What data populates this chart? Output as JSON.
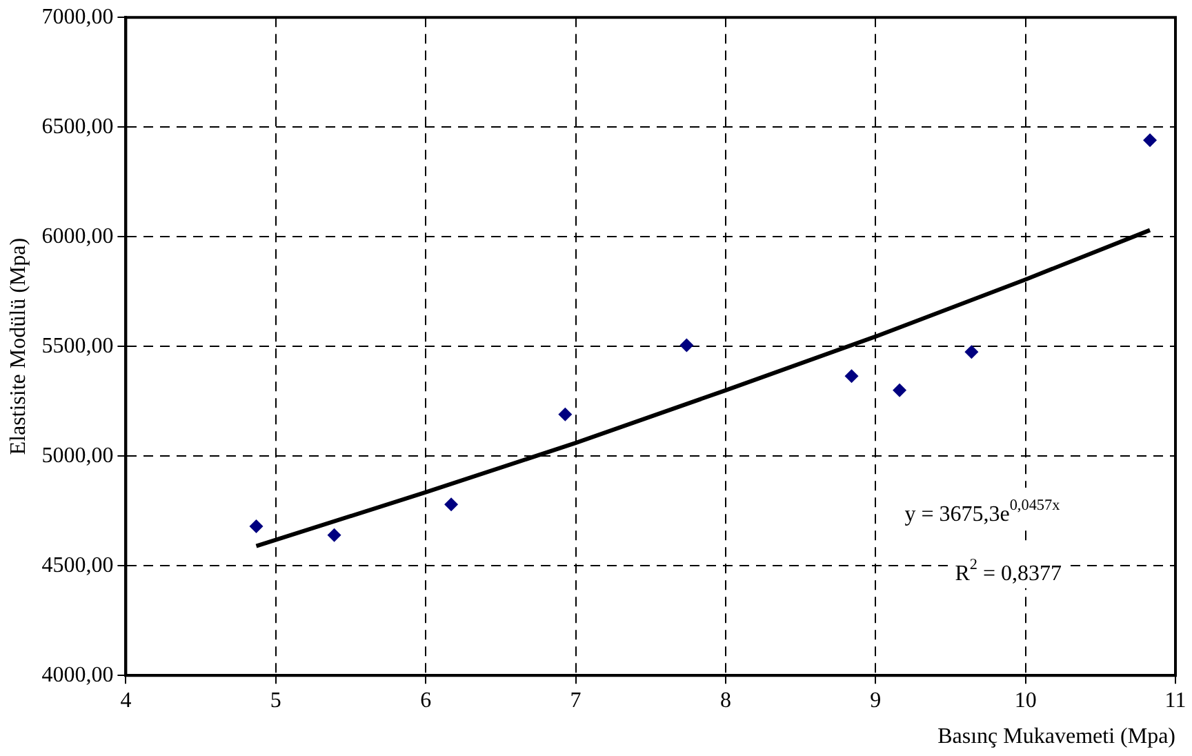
{
  "chart_data": {
    "type": "scatter",
    "xlabel": "Basınç Mukavemeti (Mpa)",
    "ylabel": "Elastisite Modülü (Mpa)",
    "annotations": [
      "y = 3675,3e$^{0,0457x}$",
      "R$^{2}$ = 0,8377"
    ],
    "series": [
      {
        "type": "scatter",
        "color": "#000080",
        "marker": "diamond",
        "x": [
          4.87,
          5.39,
          6.17,
          6.93,
          7.74,
          8.84,
          9.16,
          9.64,
          10.83
        ],
        "values": [
          4680,
          4640,
          4780,
          5190,
          5505,
          5365,
          5300,
          5475,
          6440
        ]
      },
      {
        "type": "line",
        "color": "#000000",
        "marker": "none",
        "line_style": "solid",
        "x": [
          4.87,
          6,
          7,
          8,
          9,
          10,
          10.83
        ],
        "values": [
          4590,
          4835,
          5060,
          5300,
          5545,
          5805,
          6030
        ]
      }
    ],
    "xlim": [
      4,
      11
    ],
    "xticks": [
      4,
      5,
      6,
      7,
      8,
      9,
      10,
      11
    ],
    "ylim": [
      4000,
      7000
    ],
    "yticks": [
      {
        "value": 4000,
        "label": "4000,00"
      },
      {
        "value": 4500,
        "label": "4500,00"
      },
      {
        "value": 5000,
        "label": "5000,00"
      },
      {
        "value": 5500,
        "label": "5500,00"
      },
      {
        "value": 6000,
        "label": "6000,00"
      },
      {
        "value": 6500,
        "label": "6500,00"
      },
      {
        "value": 7000,
        "label": "7000,00"
      }
    ],
    "grid": true,
    "legend": false
  }
}
